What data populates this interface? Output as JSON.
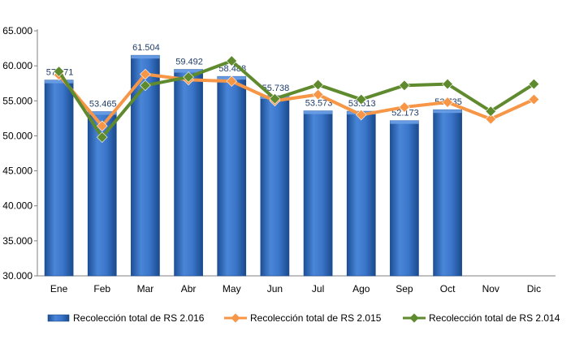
{
  "chart_data": {
    "type": "bar",
    "categories": [
      "Ene",
      "Feb",
      "Mar",
      "Abr",
      "May",
      "Jun",
      "Jul",
      "Ago",
      "Sep",
      "Oct",
      "Nov",
      "Dic"
    ],
    "ylim": [
      30000,
      65000
    ],
    "yticks": [
      30000,
      35000,
      40000,
      45000,
      50000,
      55000,
      60000,
      65000
    ],
    "ytick_labels": [
      "30.000",
      "35.000",
      "40.000",
      "45.000",
      "50.000",
      "55.000",
      "60.000",
      "65.000"
    ],
    "grid": false,
    "legend_position": "bottom",
    "series": [
      {
        "name": "Recolección total de RS 2.016",
        "type": "bar",
        "color": "#2E6BC4",
        "values": [
          57971,
          53465,
          61504,
          59492,
          58488,
          55738,
          53573,
          53513,
          52173,
          53735,
          null,
          null
        ],
        "labels": [
          "57.971",
          "53.465",
          "61.504",
          "59.492",
          "58.488",
          "55.738",
          "53.573",
          "53.513",
          "52.173",
          "53.735",
          "",
          ""
        ]
      },
      {
        "name": "Recolección total de RS 2.015",
        "type": "line",
        "color": "#F79646",
        "values": [
          58700,
          51400,
          58800,
          58000,
          57800,
          55000,
          55900,
          53000,
          54100,
          54800,
          52400,
          55200
        ]
      },
      {
        "name": "Recolección total de RS 2.014",
        "type": "line",
        "color": "#5F8A2E",
        "values": [
          59200,
          49800,
          57200,
          58400,
          60700,
          55300,
          57300,
          55200,
          57200,
          57400,
          53500,
          57400
        ]
      }
    ]
  }
}
